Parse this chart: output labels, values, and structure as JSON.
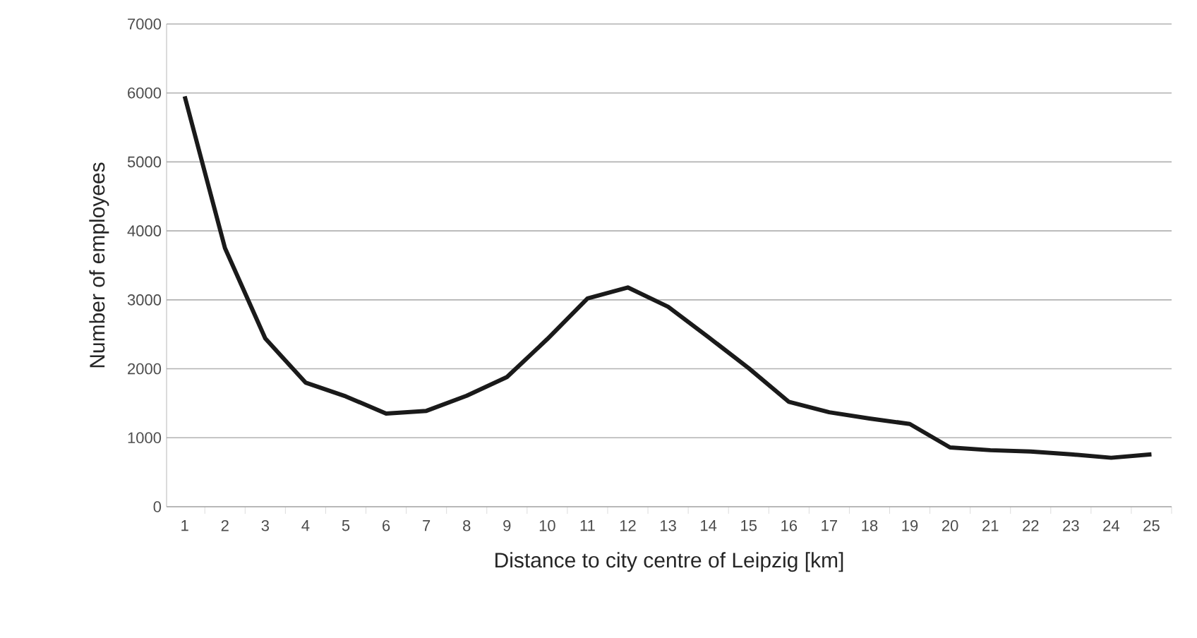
{
  "chart_data": {
    "type": "line",
    "xlabel": "Distance to city centre of Leipzig [km]",
    "ylabel": "Number of employees",
    "categories": [
      "1",
      "2",
      "3",
      "4",
      "5",
      "6",
      "7",
      "8",
      "9",
      "10",
      "11",
      "12",
      "13",
      "14",
      "15",
      "16",
      "17",
      "18",
      "19",
      "20",
      "21",
      "22",
      "23",
      "24",
      "25"
    ],
    "values": [
      5950,
      3750,
      2440,
      1800,
      1600,
      1350,
      1390,
      1610,
      1880,
      2430,
      3020,
      3180,
      2900,
      2460,
      2010,
      1520,
      1370,
      1280,
      1200,
      860,
      820,
      800,
      760,
      710,
      760
    ],
    "color": "#1a1a1a",
    "ylim": [
      0,
      7000
    ],
    "yticks": [
      0,
      1000,
      2000,
      3000,
      4000,
      5000,
      6000,
      7000
    ],
    "grid": "y",
    "marker": "none",
    "line_style": "solid"
  }
}
